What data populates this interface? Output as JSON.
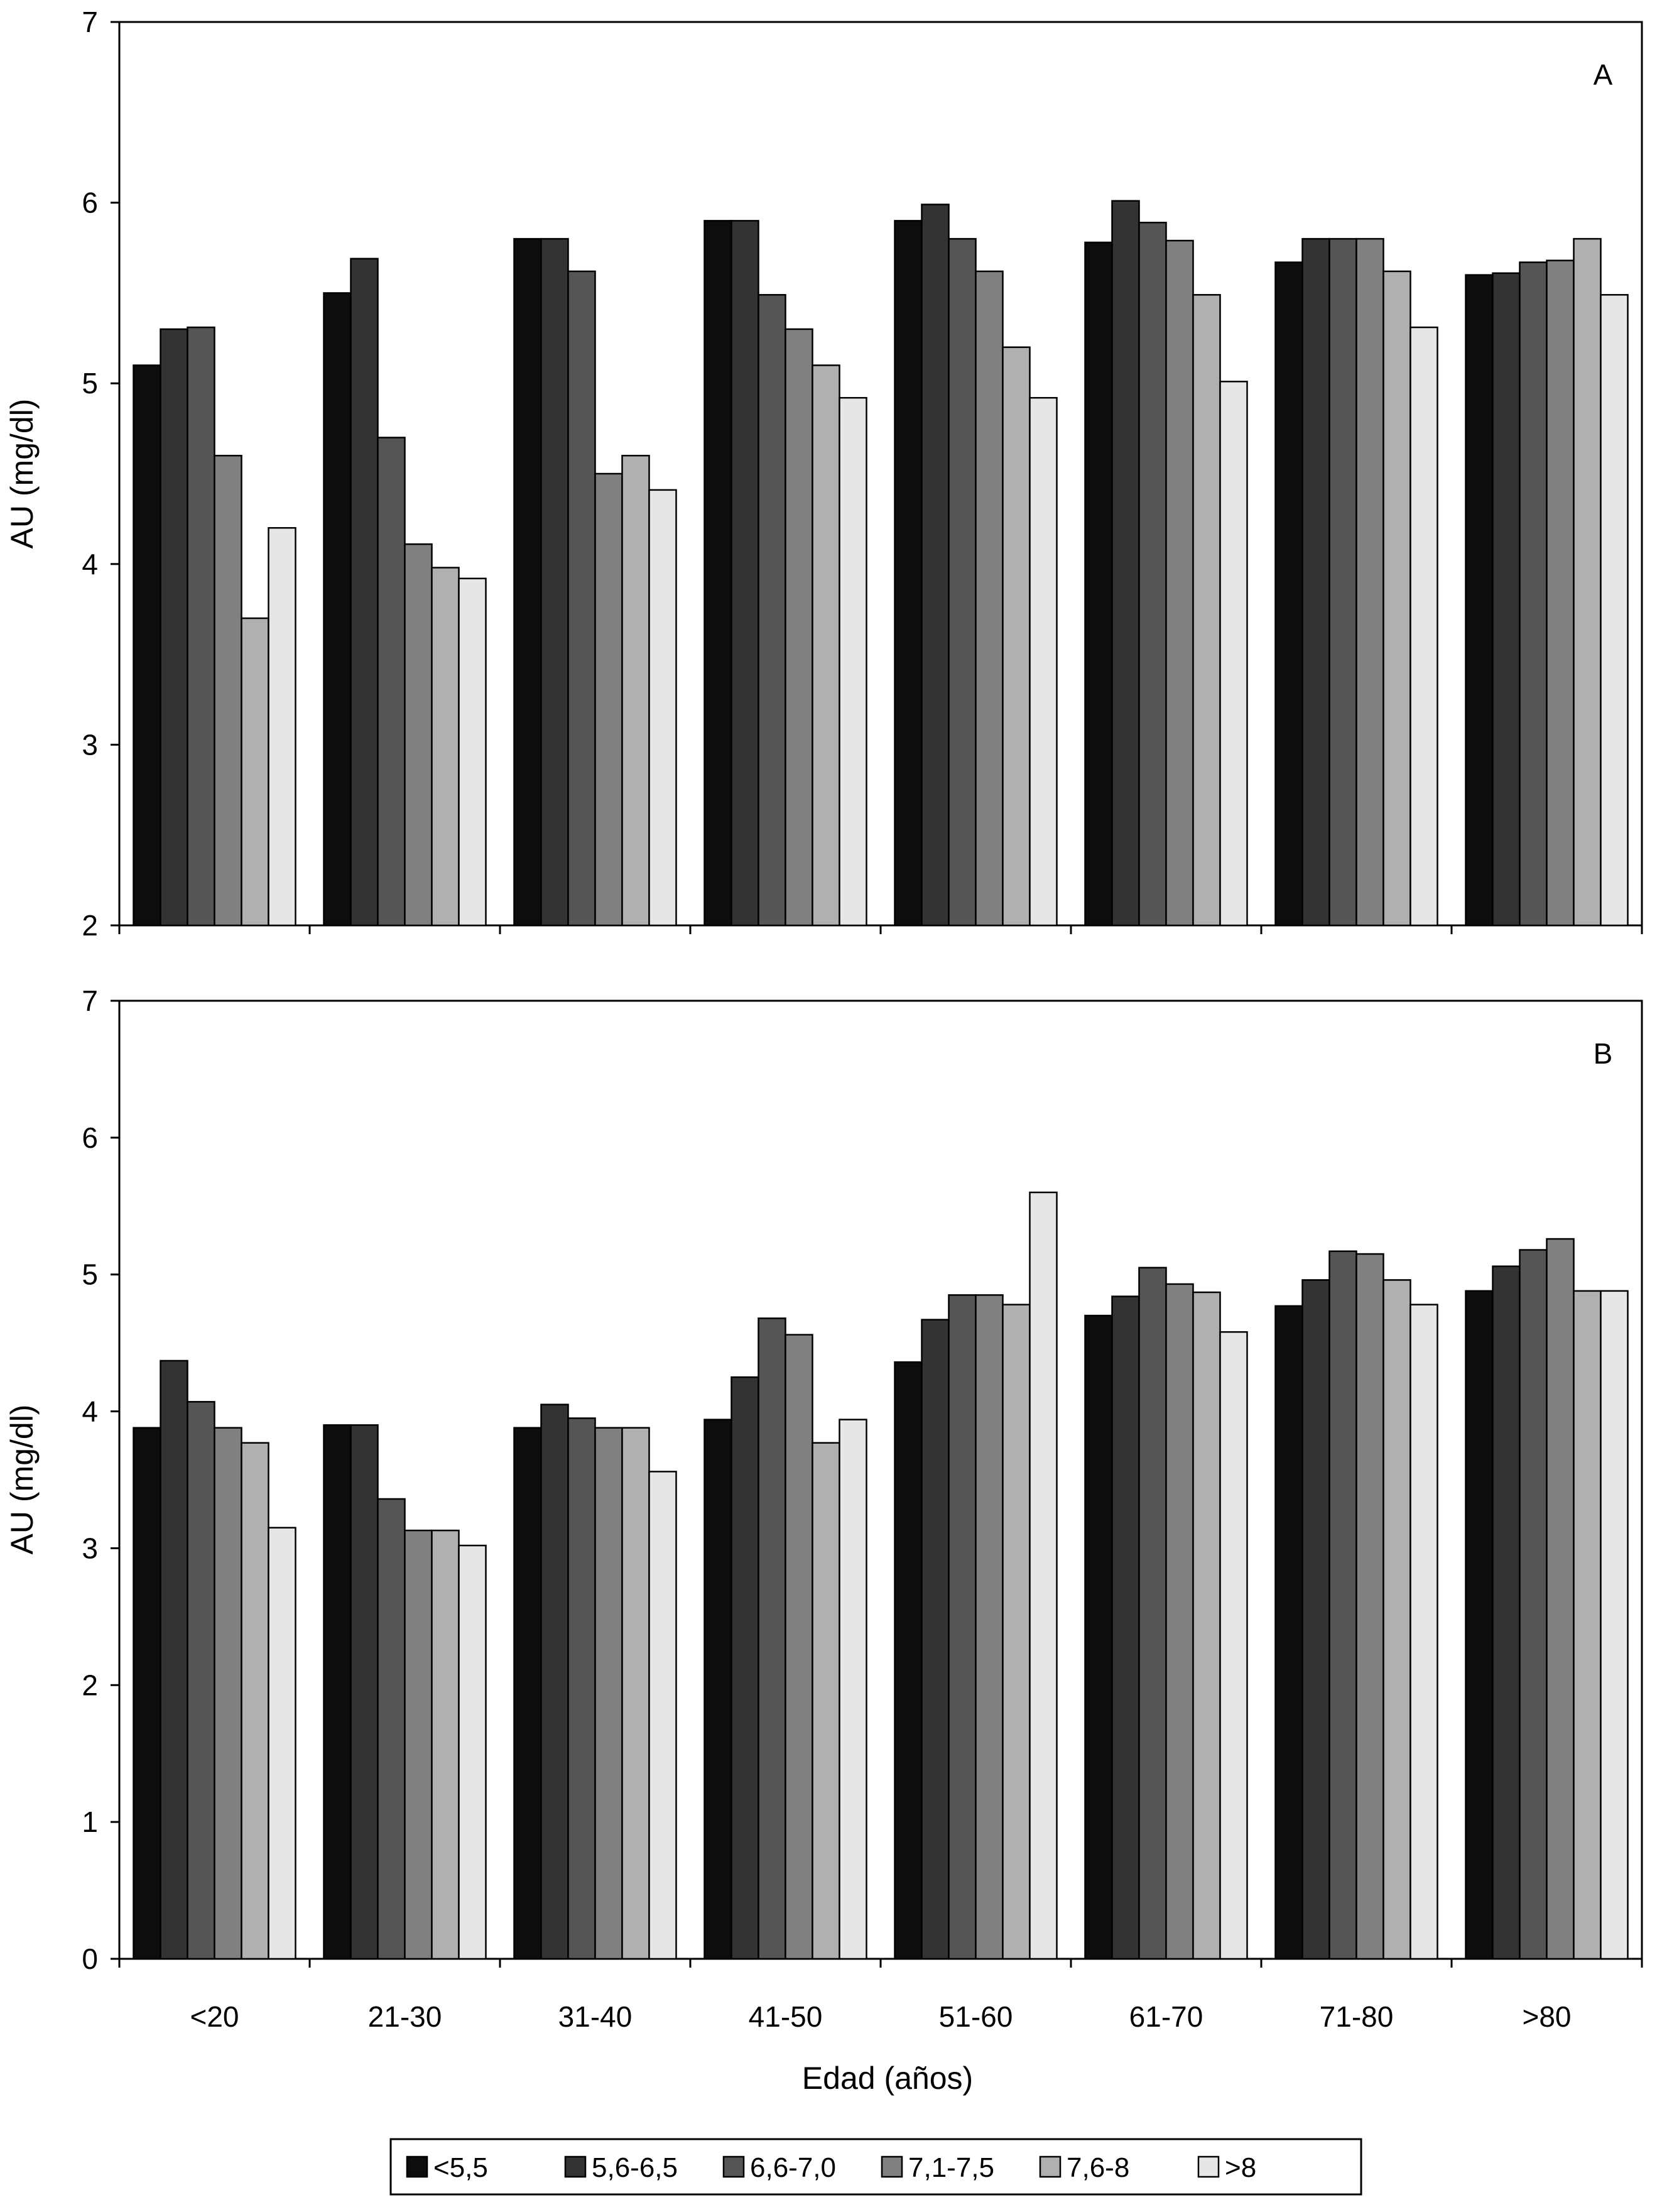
{
  "chart_data": [
    {
      "type": "bar",
      "panel_label": "A",
      "ylabel": "AU (mg/dl)",
      "ylim": [
        2,
        7
      ],
      "yticks": [
        2,
        3,
        4,
        5,
        6,
        7
      ],
      "categories": [
        "<20",
        "21-30",
        "31-40",
        "41-50",
        "51-60",
        "61-70",
        "71-80",
        ">80"
      ],
      "series": [
        {
          "name": "<5,5",
          "values": [
            5.1,
            5.5,
            5.8,
            5.9,
            5.9,
            5.78,
            5.67,
            5.6
          ]
        },
        {
          "name": "5,6-6,5",
          "values": [
            5.3,
            5.69,
            5.8,
            5.9,
            5.99,
            6.01,
            5.8,
            5.61
          ]
        },
        {
          "name": "6,6-7,0",
          "values": [
            5.31,
            4.7,
            5.62,
            5.49,
            5.8,
            5.89,
            5.8,
            5.67
          ]
        },
        {
          "name": "7,1-7,5",
          "values": [
            4.6,
            4.11,
            4.5,
            5.3,
            5.62,
            5.79,
            5.8,
            5.68
          ]
        },
        {
          "name": "7,6-8",
          "values": [
            3.7,
            3.98,
            4.6,
            5.1,
            5.2,
            5.49,
            5.62,
            5.8
          ]
        },
        {
          "name": ">8",
          "values": [
            4.2,
            3.92,
            4.41,
            4.92,
            4.92,
            5.01,
            5.31,
            5.49
          ]
        }
      ]
    },
    {
      "type": "bar",
      "panel_label": "B",
      "ylabel": "AU (mg/dl)",
      "xlabel": "Edad (años)",
      "ylim": [
        0,
        7
      ],
      "yticks": [
        0,
        1,
        2,
        3,
        4,
        5,
        6,
        7
      ],
      "categories": [
        "<20",
        "21-30",
        "31-40",
        "41-50",
        "51-60",
        "61-70",
        "71-80",
        ">80"
      ],
      "series": [
        {
          "name": "<5,5",
          "values": [
            3.88,
            3.9,
            3.88,
            3.94,
            4.36,
            4.7,
            4.77,
            4.88
          ]
        },
        {
          "name": "5,6-6,5",
          "values": [
            4.37,
            3.9,
            4.05,
            4.25,
            4.67,
            4.84,
            4.96,
            5.06
          ]
        },
        {
          "name": "6,6-7,0",
          "values": [
            4.07,
            3.36,
            3.95,
            4.68,
            4.85,
            5.05,
            5.17,
            5.18
          ]
        },
        {
          "name": "7,1-7,5",
          "values": [
            3.88,
            3.13,
            3.88,
            4.56,
            4.85,
            4.93,
            5.15,
            5.26
          ]
        },
        {
          "name": "7,6-8",
          "values": [
            3.77,
            3.13,
            3.88,
            3.77,
            4.78,
            4.87,
            4.96,
            4.88
          ]
        },
        {
          "name": ">8",
          "values": [
            3.15,
            3.02,
            3.56,
            3.94,
            5.6,
            4.58,
            4.78,
            4.88
          ]
        }
      ]
    }
  ],
  "colors": [
    "#0d0d0d",
    "#333333",
    "#555555",
    "#808080",
    "#b0b0b0",
    "#e6e6e6"
  ]
}
